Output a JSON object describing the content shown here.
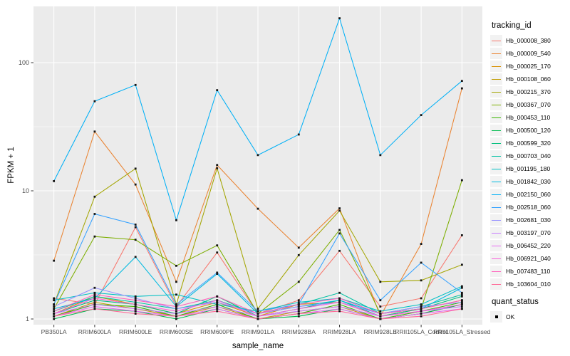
{
  "legend": {
    "tracking_title": "tracking_id",
    "quant_title": "quant_status",
    "quant_value": "OK",
    "quant_marker": "black-square-icon"
  },
  "colors": {
    "panel_background": "#EBEBEB",
    "grid_major": "#FFFFFF",
    "grid_minor": "#F7F7F7",
    "tick_label": "#4D4D4D",
    "tick_mark": "#333333",
    "point": "#141414",
    "page_background": "#FFFFFF"
  },
  "chart_data": {
    "type": "line",
    "title": "",
    "xlabel": "sample_name",
    "ylabel": "FPKM + 1",
    "y_scale": "log10",
    "ylim": [
      0.9,
      275
    ],
    "y_ticks": [
      1,
      10,
      100
    ],
    "y_tick_labels": [
      "1",
      "10",
      "100"
    ],
    "y_minor_ticks": [
      3.162,
      31.62
    ],
    "grid": "major-and-minor-horizontal-white, vertical-major-per-category, gray-panel",
    "legend_position": "right",
    "point_marker": "small-black-square",
    "categories": [
      "PB350LA",
      "RRIM600LA",
      "RRIM600LE",
      "RRIM600SE",
      "RRIM600PE",
      "RRIM901LA",
      "RRIM928BA",
      "RRIM928LA",
      "RRIM928LE",
      "RRII105LA_Control",
      "RRII105LA_Stressed"
    ],
    "series": [
      {
        "name": "Hb_000008_380",
        "color": "#F8766D",
        "values": [
          1.45,
          1.3,
          5.2,
          1.25,
          3.3,
          1.1,
          1.4,
          3.4,
          1.25,
          1.45,
          4.5
        ]
      },
      {
        "name": "Hb_000009_540",
        "color": "#EA8331",
        "values": [
          2.85,
          29.0,
          11.2,
          1.95,
          15.9,
          7.25,
          3.6,
          7.3,
          1.05,
          3.85,
          63.0
        ]
      },
      {
        "name": "Hb_000025_170",
        "color": "#D89000",
        "values": [
          1.1,
          1.5,
          1.3,
          1.1,
          1.35,
          1.05,
          1.3,
          1.35,
          1.05,
          1.2,
          1.4
        ]
      },
      {
        "name": "Hb_000108_060",
        "color": "#C09B00",
        "values": [
          1.05,
          1.35,
          1.2,
          1.05,
          1.25,
          1.0,
          1.15,
          1.25,
          1.0,
          1.1,
          1.3
        ]
      },
      {
        "name": "Hb_000215_370",
        "color": "#A3A500",
        "values": [
          1.3,
          9.0,
          14.9,
          1.3,
          15.0,
          1.2,
          3.15,
          7.0,
          1.95,
          2.0,
          2.65
        ]
      },
      {
        "name": "Hb_000367_070",
        "color": "#7CAE00",
        "values": [
          1.2,
          4.4,
          4.15,
          2.6,
          3.75,
          1.1,
          1.95,
          4.95,
          1.1,
          1.2,
          12.1
        ]
      },
      {
        "name": "Hb_000453_110",
        "color": "#39B600",
        "values": [
          1.05,
          1.3,
          1.25,
          1.05,
          1.3,
          1.0,
          1.1,
          1.3,
          1.0,
          1.15,
          1.35
        ]
      },
      {
        "name": "Hb_000500_120",
        "color": "#00BB4E",
        "values": [
          1.0,
          1.2,
          1.15,
          1.0,
          1.2,
          1.0,
          1.05,
          1.2,
          1.0,
          1.1,
          1.3
        ]
      },
      {
        "name": "Hb_000599_320",
        "color": "#00BF7D",
        "values": [
          1.1,
          1.4,
          1.3,
          1.1,
          1.5,
          1.05,
          1.2,
          1.4,
          1.05,
          1.2,
          1.5
        ]
      },
      {
        "name": "Hb_000703_040",
        "color": "#00C1A3",
        "values": [
          1.15,
          1.5,
          1.35,
          1.2,
          1.4,
          1.1,
          1.3,
          1.6,
          1.1,
          1.25,
          1.55
        ]
      },
      {
        "name": "Hb_001195_180",
        "color": "#00BFC4",
        "values": [
          1.4,
          1.6,
          1.5,
          1.55,
          1.3,
          1.15,
          1.35,
          1.45,
          1.15,
          1.3,
          1.8
        ]
      },
      {
        "name": "Hb_001842_030",
        "color": "#00BAE0",
        "values": [
          1.2,
          1.45,
          3.05,
          1.25,
          2.25,
          1.1,
          1.25,
          1.4,
          1.1,
          1.2,
          1.75
        ]
      },
      {
        "name": "Hb_002150_060",
        "color": "#00B0F6",
        "values": [
          11.9,
          50.0,
          67.0,
          5.9,
          61.0,
          19.0,
          27.5,
          222.0,
          19.0,
          39.0,
          72.0
        ]
      },
      {
        "name": "Hb_002518_060",
        "color": "#35A2FF",
        "values": [
          1.3,
          6.6,
          5.45,
          1.3,
          2.3,
          1.15,
          1.3,
          4.65,
          1.4,
          2.75,
          1.6
        ]
      },
      {
        "name": "Hb_002681_030",
        "color": "#9590FF",
        "values": [
          1.25,
          1.75,
          1.45,
          1.2,
          1.35,
          1.1,
          1.25,
          1.35,
          1.1,
          1.25,
          1.35
        ]
      },
      {
        "name": "Hb_003197_070",
        "color": "#C77CFF",
        "values": [
          1.1,
          1.3,
          1.2,
          1.1,
          1.25,
          1.05,
          1.15,
          1.25,
          1.05,
          1.15,
          1.25
        ]
      },
      {
        "name": "Hb_006452_220",
        "color": "#E76BF3",
        "values": [
          1.05,
          1.25,
          1.15,
          1.05,
          1.2,
          1.0,
          1.1,
          1.2,
          1.0,
          1.1,
          1.2
        ]
      },
      {
        "name": "Hb_006921_040",
        "color": "#FA62DB",
        "values": [
          1.1,
          1.45,
          1.3,
          1.15,
          1.4,
          1.05,
          1.2,
          1.35,
          1.05,
          1.15,
          1.3
        ]
      },
      {
        "name": "Hb_007483_110",
        "color": "#FF62BC",
        "values": [
          1.15,
          1.55,
          1.4,
          1.25,
          1.5,
          1.1,
          1.3,
          1.45,
          1.1,
          1.2,
          1.4
        ]
      },
      {
        "name": "Hb_103604_010",
        "color": "#FF6A98",
        "values": [
          1.05,
          1.2,
          1.1,
          1.05,
          1.15,
          1.0,
          1.1,
          1.15,
          1.0,
          1.05,
          1.2
        ]
      }
    ]
  }
}
